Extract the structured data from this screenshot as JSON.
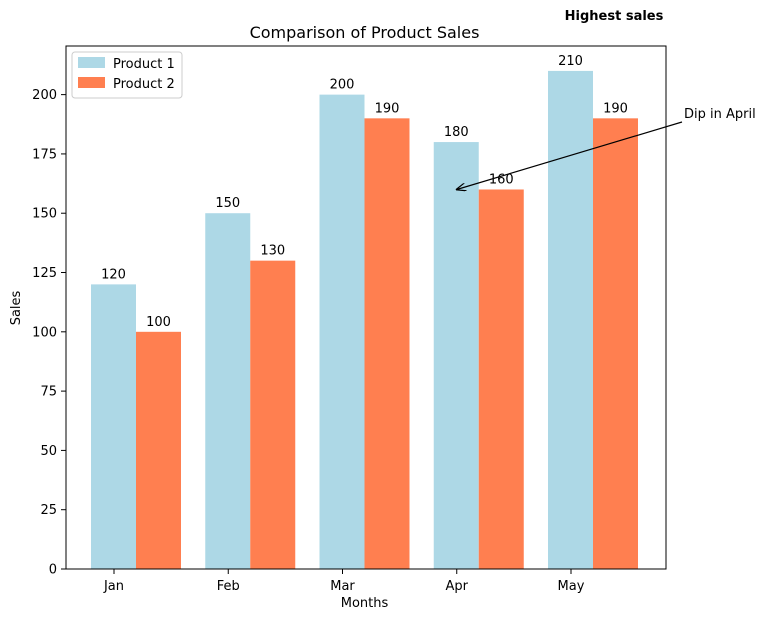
{
  "chart_data": {
    "type": "bar",
    "title": "Comparison of Product Sales",
    "xlabel": "Months",
    "ylabel": "Sales",
    "categories": [
      "Jan",
      "Feb",
      "Mar",
      "Apr",
      "May"
    ],
    "series": [
      {
        "name": "Product 1",
        "values": [
          120,
          150,
          200,
          180,
          210
        ],
        "color": "#add8e6"
      },
      {
        "name": "Product 2",
        "values": [
          100,
          130,
          190,
          160,
          190
        ],
        "color": "#ff7f50"
      }
    ],
    "ylim": [
      0,
      220.5
    ],
    "yticks": [
      0,
      25,
      50,
      75,
      100,
      125,
      150,
      175,
      200
    ],
    "grid": false,
    "legend_position": "upper left",
    "annotations": [
      {
        "text": "Dip in April",
        "target_category": "Apr",
        "target_value": 160
      }
    ],
    "extra_text": {
      "text": "Highest sales",
      "color": "#008000"
    }
  }
}
